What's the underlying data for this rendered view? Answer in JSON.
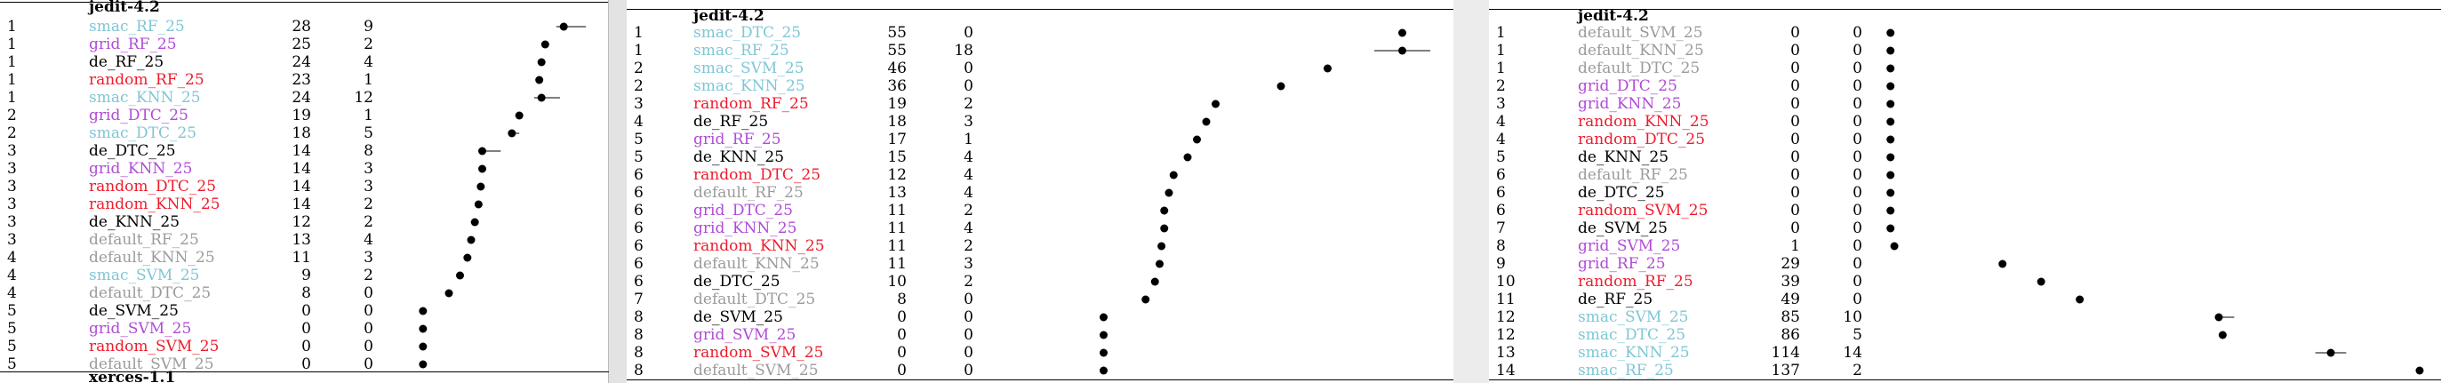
{
  "panels": [
    {
      "id": "left",
      "title_top": "jedit-4.2",
      "title_bottom": "xerces-1.1",
      "rows": [
        {
          "rank": "1",
          "name": "smac_RF_25",
          "color": "#7fc6d6",
          "a": 28,
          "b": 9,
          "mean": 29.5,
          "lo": 28.5,
          "hi": 32.5
        },
        {
          "rank": "1",
          "name": "grid_RF_25",
          "color": "#b04bd6",
          "a": 25,
          "b": 2,
          "mean": 27.0,
          "lo": 26.8,
          "hi": 27.2
        },
        {
          "rank": "1",
          "name": "de_RF_25",
          "color": "#000000",
          "a": 24,
          "b": 4,
          "mean": 26.5,
          "lo": 26.0,
          "hi": 27.0
        },
        {
          "rank": "1",
          "name": "random_RF_25",
          "color": "#ee1c2c",
          "a": 23,
          "b": 1,
          "mean": 26.2,
          "lo": 26.0,
          "hi": 26.4
        },
        {
          "rank": "1",
          "name": "smac_KNN_25",
          "color": "#7fc6d6",
          "a": 24,
          "b": 12,
          "mean": 26.5,
          "lo": 25.5,
          "hi": 29.0
        },
        {
          "rank": "2",
          "name": "grid_DTC_25",
          "color": "#b04bd6",
          "a": 19,
          "b": 1,
          "mean": 23.5,
          "lo": 23.3,
          "hi": 23.7
        },
        {
          "rank": "2",
          "name": "smac_DTC_25",
          "color": "#7fc6d6",
          "a": 18,
          "b": 5,
          "mean": 22.5,
          "lo": 22.0,
          "hi": 23.5
        },
        {
          "rank": "3",
          "name": "de_DTC_25",
          "color": "#000000",
          "a": 14,
          "b": 8,
          "mean": 18.5,
          "lo": 18.0,
          "hi": 21.0
        },
        {
          "rank": "3",
          "name": "grid_KNN_25",
          "color": "#b04bd6",
          "a": 14,
          "b": 3,
          "mean": 18.5,
          "lo": 18.2,
          "hi": 18.8
        },
        {
          "rank": "3",
          "name": "random_DTC_25",
          "color": "#ee1c2c",
          "a": 14,
          "b": 3,
          "mean": 18.3,
          "lo": 18.0,
          "hi": 18.6
        },
        {
          "rank": "3",
          "name": "random_KNN_25",
          "color": "#ee1c2c",
          "a": 14,
          "b": 2,
          "mean": 18.0,
          "lo": 17.8,
          "hi": 18.2
        },
        {
          "rank": "3",
          "name": "de_KNN_25",
          "color": "#000000",
          "a": 12,
          "b": 2,
          "mean": 17.5,
          "lo": 17.3,
          "hi": 17.7
        },
        {
          "rank": "3",
          "name": "default_RF_25",
          "color": "#9b9b9b",
          "a": 13,
          "b": 4,
          "mean": 17.0,
          "lo": 16.8,
          "hi": 17.2
        },
        {
          "rank": "4",
          "name": "default_KNN_25",
          "color": "#9b9b9b",
          "a": 11,
          "b": 3,
          "mean": 16.5,
          "lo": 16.3,
          "hi": 16.7
        },
        {
          "rank": "4",
          "name": "smac_SVM_25",
          "color": "#7fc6d6",
          "a": 9,
          "b": 2,
          "mean": 15.5,
          "lo": 15.3,
          "hi": 15.7
        },
        {
          "rank": "4",
          "name": "default_DTC_25",
          "color": "#9b9b9b",
          "a": 8,
          "b": 0,
          "mean": 14.0,
          "lo": 14.0,
          "hi": 14.0
        },
        {
          "rank": "5",
          "name": "de_SVM_25",
          "color": "#000000",
          "a": 0,
          "b": 0,
          "mean": 10.5,
          "lo": 10.5,
          "hi": 10.5
        },
        {
          "rank": "5",
          "name": "grid_SVM_25",
          "color": "#b04bd6",
          "a": 0,
          "b": 0,
          "mean": 10.5,
          "lo": 10.5,
          "hi": 10.5
        },
        {
          "rank": "5",
          "name": "random_SVM_25",
          "color": "#ee1c2c",
          "a": 0,
          "b": 0,
          "mean": 10.5,
          "lo": 10.5,
          "hi": 10.5
        },
        {
          "rank": "5",
          "name": "default_SVM_25",
          "color": "#9b9b9b",
          "a": 0,
          "b": 0,
          "mean": 10.5,
          "lo": 10.5,
          "hi": 10.5
        }
      ]
    },
    {
      "id": "middle",
      "title_top": "jedit-4.2",
      "title_bottom": "",
      "rows": [
        {
          "rank": "1",
          "name": "smac_DTC_25",
          "color": "#7fc6d6",
          "a": 55,
          "b": 0,
          "mean": 55.0,
          "lo": 55.0,
          "hi": 55.0
        },
        {
          "rank": "1",
          "name": "smac_RF_25",
          "color": "#7fc6d6",
          "a": 55,
          "b": 18,
          "mean": 55.0,
          "lo": 52.0,
          "hi": 58.0
        },
        {
          "rank": "2",
          "name": "smac_SVM_25",
          "color": "#7fc6d6",
          "a": 46,
          "b": 0,
          "mean": 47.0,
          "lo": 47.0,
          "hi": 47.0
        },
        {
          "rank": "2",
          "name": "smac_KNN_25",
          "color": "#7fc6d6",
          "a": 36,
          "b": 0,
          "mean": 42.0,
          "lo": 42.0,
          "hi": 42.0
        },
        {
          "rank": "3",
          "name": "random_RF_25",
          "color": "#ee1c2c",
          "a": 19,
          "b": 2,
          "mean": 35.0,
          "lo": 34.8,
          "hi": 35.2
        },
        {
          "rank": "4",
          "name": "de_RF_25",
          "color": "#000000",
          "a": 18,
          "b": 3,
          "mean": 34.0,
          "lo": 33.8,
          "hi": 34.2
        },
        {
          "rank": "5",
          "name": "grid_RF_25",
          "color": "#b04bd6",
          "a": 17,
          "b": 1,
          "mean": 33.0,
          "lo": 32.8,
          "hi": 33.2
        },
        {
          "rank": "5",
          "name": "de_KNN_25",
          "color": "#000000",
          "a": 15,
          "b": 4,
          "mean": 32.0,
          "lo": 31.8,
          "hi": 32.2
        },
        {
          "rank": "6",
          "name": "random_DTC_25",
          "color": "#ee1c2c",
          "a": 12,
          "b": 4,
          "mean": 30.5,
          "lo": 30.3,
          "hi": 30.7
        },
        {
          "rank": "6",
          "name": "default_RF_25",
          "color": "#9b9b9b",
          "a": 13,
          "b": 4,
          "mean": 30.0,
          "lo": 29.8,
          "hi": 30.2
        },
        {
          "rank": "6",
          "name": "grid_DTC_25",
          "color": "#b04bd6",
          "a": 11,
          "b": 2,
          "mean": 29.5,
          "lo": 29.3,
          "hi": 29.7
        },
        {
          "rank": "6",
          "name": "grid_KNN_25",
          "color": "#b04bd6",
          "a": 11,
          "b": 4,
          "mean": 29.5,
          "lo": 29.3,
          "hi": 29.7
        },
        {
          "rank": "6",
          "name": "random_KNN_25",
          "color": "#ee1c2c",
          "a": 11,
          "b": 2,
          "mean": 29.2,
          "lo": 29.0,
          "hi": 29.4
        },
        {
          "rank": "6",
          "name": "default_KNN_25",
          "color": "#9b9b9b",
          "a": 11,
          "b": 3,
          "mean": 29.0,
          "lo": 28.8,
          "hi": 29.2
        },
        {
          "rank": "6",
          "name": "de_DTC_25",
          "color": "#000000",
          "a": 10,
          "b": 2,
          "mean": 28.5,
          "lo": 28.3,
          "hi": 28.7
        },
        {
          "rank": "7",
          "name": "default_DTC_25",
          "color": "#9b9b9b",
          "a": 8,
          "b": 0,
          "mean": 27.5,
          "lo": 27.5,
          "hi": 27.5
        },
        {
          "rank": "8",
          "name": "de_SVM_25",
          "color": "#000000",
          "a": 0,
          "b": 0,
          "mean": 23.0,
          "lo": 23.0,
          "hi": 23.0
        },
        {
          "rank": "8",
          "name": "grid_SVM_25",
          "color": "#b04bd6",
          "a": 0,
          "b": 0,
          "mean": 23.0,
          "lo": 23.0,
          "hi": 23.0
        },
        {
          "rank": "8",
          "name": "random_SVM_25",
          "color": "#ee1c2c",
          "a": 0,
          "b": 0,
          "mean": 23.0,
          "lo": 23.0,
          "hi": 23.0
        },
        {
          "rank": "8",
          "name": "default_SVM_25",
          "color": "#9b9b9b",
          "a": 0,
          "b": 0,
          "mean": 23.0,
          "lo": 23.0,
          "hi": 23.0
        }
      ]
    },
    {
      "id": "right",
      "title_top": "jedit-4.2",
      "title_bottom": "",
      "rows": [
        {
          "rank": "1",
          "name": "default_SVM_25",
          "color": "#9b9b9b",
          "a": 0,
          "b": 0,
          "mean": 0,
          "lo": 0,
          "hi": 0
        },
        {
          "rank": "1",
          "name": "default_KNN_25",
          "color": "#9b9b9b",
          "a": 0,
          "b": 0,
          "mean": 0,
          "lo": 0,
          "hi": 0
        },
        {
          "rank": "1",
          "name": "default_DTC_25",
          "color": "#9b9b9b",
          "a": 0,
          "b": 0,
          "mean": 0,
          "lo": 0,
          "hi": 0
        },
        {
          "rank": "2",
          "name": "grid_DTC_25",
          "color": "#b04bd6",
          "a": 0,
          "b": 0,
          "mean": 0,
          "lo": 0,
          "hi": 0
        },
        {
          "rank": "3",
          "name": "grid_KNN_25",
          "color": "#b04bd6",
          "a": 0,
          "b": 0,
          "mean": 0,
          "lo": 0,
          "hi": 0
        },
        {
          "rank": "4",
          "name": "random_KNN_25",
          "color": "#ee1c2c",
          "a": 0,
          "b": 0,
          "mean": 0,
          "lo": 0,
          "hi": 0
        },
        {
          "rank": "4",
          "name": "random_DTC_25",
          "color": "#ee1c2c",
          "a": 0,
          "b": 0,
          "mean": 0,
          "lo": 0,
          "hi": 0
        },
        {
          "rank": "5",
          "name": "de_KNN_25",
          "color": "#000000",
          "a": 0,
          "b": 0,
          "mean": 0,
          "lo": 0,
          "hi": 0
        },
        {
          "rank": "6",
          "name": "default_RF_25",
          "color": "#9b9b9b",
          "a": 0,
          "b": 0,
          "mean": 0,
          "lo": 0,
          "hi": 0
        },
        {
          "rank": "6",
          "name": "de_DTC_25",
          "color": "#000000",
          "a": 0,
          "b": 0,
          "mean": 0,
          "lo": 0,
          "hi": 0
        },
        {
          "rank": "6",
          "name": "random_SVM_25",
          "color": "#ee1c2c",
          "a": 0,
          "b": 0,
          "mean": 0,
          "lo": 0,
          "hi": 0
        },
        {
          "rank": "7",
          "name": "de_SVM_25",
          "color": "#000000",
          "a": 0,
          "b": 0,
          "mean": 0,
          "lo": 0,
          "hi": 0
        },
        {
          "rank": "8",
          "name": "grid_SVM_25",
          "color": "#b04bd6",
          "a": 1,
          "b": 0,
          "mean": 1,
          "lo": 1,
          "hi": 1
        },
        {
          "rank": "9",
          "name": "grid_RF_25",
          "color": "#b04bd6",
          "a": 29,
          "b": 0,
          "mean": 29,
          "lo": 29,
          "hi": 29
        },
        {
          "rank": "10",
          "name": "random_RF_25",
          "color": "#ee1c2c",
          "a": 39,
          "b": 0,
          "mean": 39,
          "lo": 39,
          "hi": 39
        },
        {
          "rank": "11",
          "name": "de_RF_25",
          "color": "#000000",
          "a": 49,
          "b": 0,
          "mean": 49,
          "lo": 49,
          "hi": 49
        },
        {
          "rank": "12",
          "name": "smac_SVM_25",
          "color": "#7fc6d6",
          "a": 85,
          "b": 10,
          "mean": 85,
          "lo": 84,
          "hi": 89
        },
        {
          "rank": "12",
          "name": "smac_DTC_25",
          "color": "#7fc6d6",
          "a": 86,
          "b": 5,
          "mean": 86,
          "lo": 86,
          "hi": 86
        },
        {
          "rank": "13",
          "name": "smac_KNN_25",
          "color": "#7fc6d6",
          "a": 114,
          "b": 14,
          "mean": 114,
          "lo": 110,
          "hi": 118
        },
        {
          "rank": "14",
          "name": "smac_RF_25",
          "color": "#7fc6d6",
          "a": 137,
          "b": 2,
          "mean": 137,
          "lo": 137,
          "hi": 137
        }
      ]
    }
  ]
}
